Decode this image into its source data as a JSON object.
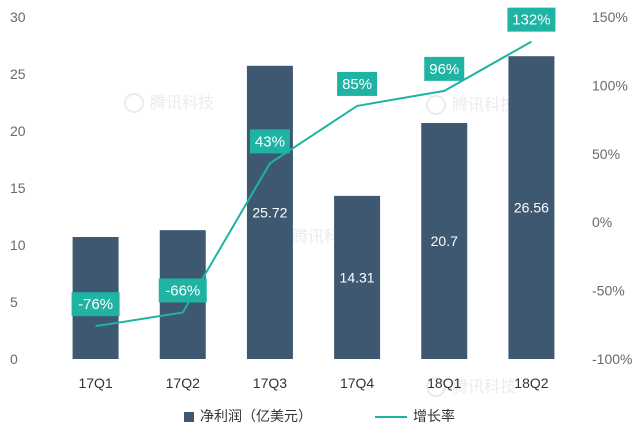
{
  "chart_data": {
    "type": "bar",
    "categories": [
      "17Q1",
      "17Q2",
      "17Q3",
      "17Q4",
      "18Q1",
      "18Q2"
    ],
    "series": [
      {
        "name": "净利润（亿美元）",
        "type": "bar",
        "axis": "left",
        "values": [
          10.7,
          11.3,
          25.72,
          14.31,
          20.7,
          26.56
        ],
        "data_labels": [
          "",
          "",
          "25.72",
          "14.31",
          "20.7",
          "26.56"
        ]
      },
      {
        "name": "增长率",
        "type": "line",
        "axis": "right",
        "values": [
          -76,
          -66,
          43,
          85,
          96,
          132
        ],
        "data_labels": [
          "-76%",
          "-66%",
          "43%",
          "85%",
          "96%",
          "132%"
        ]
      }
    ],
    "y_left": {
      "ylim": [
        0,
        30
      ],
      "ticks": [
        "0",
        "5",
        "10",
        "15",
        "20",
        "25",
        "30"
      ]
    },
    "y_right": {
      "ylim": [
        -100,
        150
      ],
      "ticks": [
        "-100%",
        "-50%",
        "0%",
        "50%",
        "100%",
        "150%"
      ]
    },
    "grid": false,
    "legend_position": "bottom-center",
    "watermark": "腾讯科技",
    "colors": {
      "bar": "#3f5872",
      "line": "#1fb3a3",
      "label_box": "#1fb3a3",
      "label_text": "#ffffff"
    }
  }
}
